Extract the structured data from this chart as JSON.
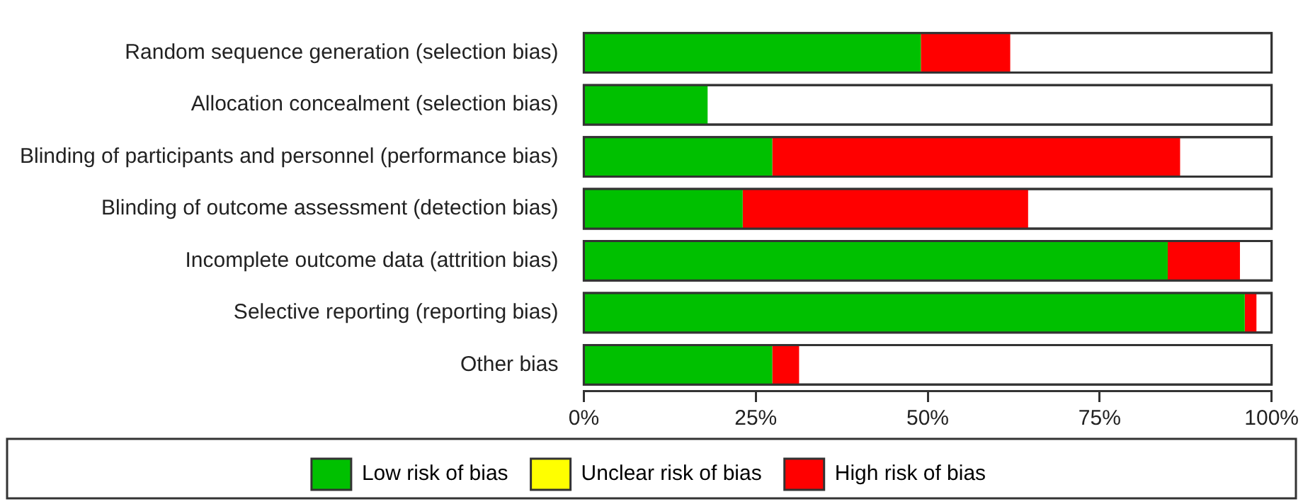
{
  "chart_data": {
    "type": "bar",
    "orientation": "horizontal",
    "stacked": true,
    "categories": [
      "Random sequence generation (selection bias)",
      "Allocation concealment (selection bias)",
      "Blinding of participants and personnel (performance bias)",
      "Blinding of outcome assessment (detection bias)",
      "Incomplete outcome data (attrition bias)",
      "Selective reporting (reporting bias)",
      "Other bias"
    ],
    "series": [
      {
        "name": "Low risk of bias",
        "color": "#00c000",
        "values": [
          49,
          18,
          27.4,
          23.1,
          84.9,
          96.1,
          27.4
        ]
      },
      {
        "name": "Unclear risk of bias",
        "color": "#ffff00",
        "values": [
          null,
          null,
          null,
          null,
          null,
          null,
          null
        ]
      },
      {
        "name": "High risk of bias",
        "color": "#ff0000",
        "values": [
          13,
          null,
          59.3,
          41.5,
          10.5,
          1.7,
          3.9
        ]
      }
    ],
    "xlim": [
      0,
      100
    ],
    "xticks": [
      {
        "value": 0,
        "label": "0%"
      },
      {
        "value": 25,
        "label": "25%"
      },
      {
        "value": 50,
        "label": "50%"
      },
      {
        "value": 75,
        "label": "75%"
      },
      {
        "value": 100,
        "label": "100%"
      }
    ],
    "grid": false,
    "legend": "bottom"
  }
}
